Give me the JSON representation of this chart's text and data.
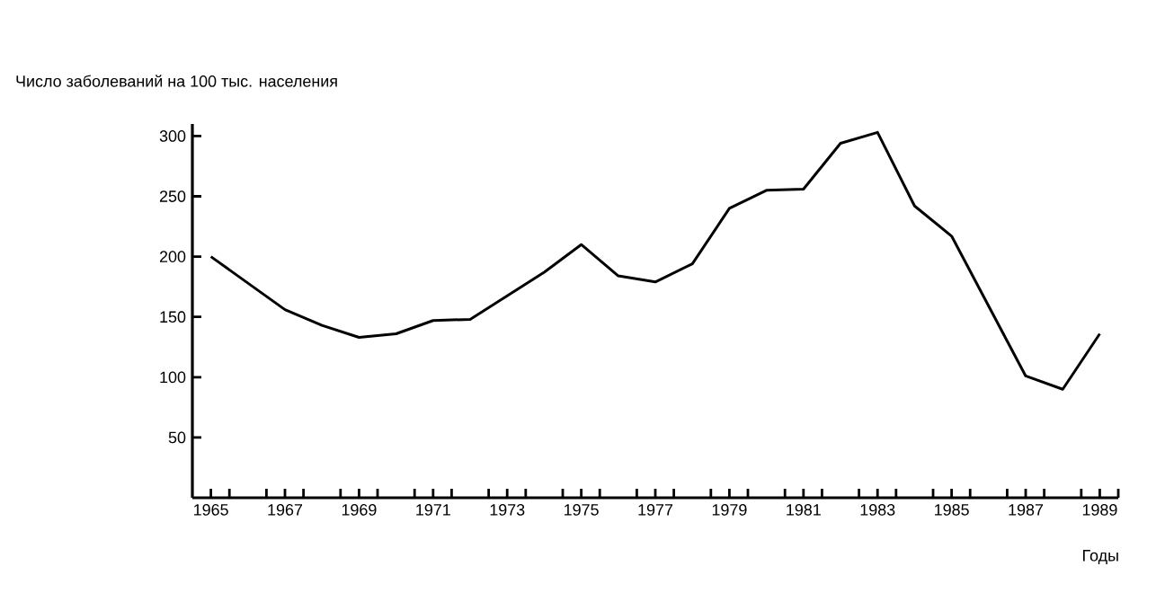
{
  "chart_data": {
    "type": "line",
    "ylabel": "Число заболеваний на 100 тыс. населения",
    "xlabel": "Годы",
    "x": [
      1965,
      1967,
      1968,
      1969,
      1970,
      1971,
      1972,
      1974,
      1975,
      1976,
      1977,
      1978,
      1979,
      1980,
      1981,
      1982,
      1983,
      1984,
      1985,
      1987,
      1988,
      1989
    ],
    "series": [
      {
        "color": "#000000",
        "values": [
          200,
          156,
          143,
          133,
          136,
          147,
          148,
          187,
          210,
          184,
          179,
          194,
          240,
          255,
          256,
          294,
          303,
          242,
          217,
          101,
          90,
          136
        ]
      }
    ],
    "xlim": [
      1964.5,
      1989.5
    ],
    "ylim": [
      0,
      310
    ],
    "xticks": [
      {
        "value": 1965,
        "label": "1965"
      },
      {
        "value": 1967,
        "label": "1967"
      },
      {
        "value": 1969,
        "label": "1969"
      },
      {
        "value": 1971,
        "label": "1971"
      },
      {
        "value": 1973,
        "label": "1973"
      },
      {
        "value": 1975,
        "label": "1975"
      },
      {
        "value": 1977,
        "label": "1977"
      },
      {
        "value": 1979,
        "label": "1979"
      },
      {
        "value": 1981,
        "label": "1981"
      },
      {
        "value": 1983,
        "label": "1983"
      },
      {
        "value": 1985,
        "label": "1985"
      },
      {
        "value": 1987,
        "label": "1987"
      },
      {
        "value": 1989,
        "label": "1989"
      },
      {
        "value": 1965.5,
        "label": null
      },
      {
        "value": 1966.5,
        "label": null
      },
      {
        "value": 1967.5,
        "label": null
      },
      {
        "value": 1968.5,
        "label": null
      },
      {
        "value": 1969.5,
        "label": null
      },
      {
        "value": 1970.5,
        "label": null
      },
      {
        "value": 1971.5,
        "label": null
      },
      {
        "value": 1972.5,
        "label": null
      },
      {
        "value": 1973.5,
        "label": null
      },
      {
        "value": 1974.5,
        "label": null
      },
      {
        "value": 1975.5,
        "label": null
      },
      {
        "value": 1976.5,
        "label": null
      },
      {
        "value": 1977.5,
        "label": null
      },
      {
        "value": 1978.5,
        "label": null
      },
      {
        "value": 1979.5,
        "label": null
      },
      {
        "value": 1980.5,
        "label": null
      },
      {
        "value": 1981.5,
        "label": null
      },
      {
        "value": 1982.5,
        "label": null
      },
      {
        "value": 1983.5,
        "label": null
      },
      {
        "value": 1984.5,
        "label": null
      },
      {
        "value": 1985.5,
        "label": null
      },
      {
        "value": 1986.5,
        "label": null
      },
      {
        "value": 1987.5,
        "label": null
      },
      {
        "value": 1988.5,
        "label": null
      },
      {
        "value": 1989.5,
        "label": null
      }
    ],
    "yticks": [
      50,
      100,
      150,
      200,
      250,
      300
    ],
    "grid": false,
    "marker": "none",
    "line_style": "solid"
  }
}
